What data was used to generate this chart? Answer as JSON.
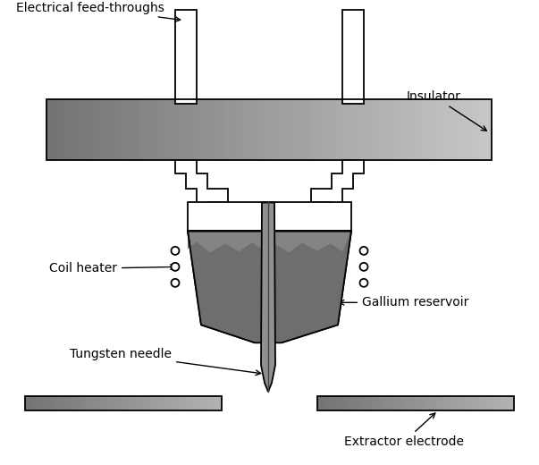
{
  "bg_color": "#ffffff",
  "line_color": "#000000",
  "text_color": "#000000",
  "labels": {
    "electrical_feedthroughs": "Electrical feed-throughs",
    "insulator": "Insulator",
    "coil_heater": "Coil heater",
    "gallium_reservoir": "Gallium reservoir",
    "tungsten_needle": "Tungsten needle",
    "extractor_electrode": "Extractor electrode"
  },
  "figsize": [
    6.03,
    5.2
  ],
  "dpi": 100,
  "xlim": [
    0,
    603
  ],
  "ylim": [
    0,
    520
  ]
}
